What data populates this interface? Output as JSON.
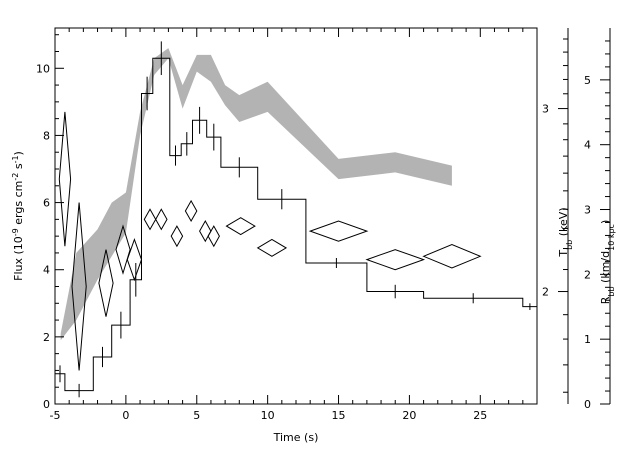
{
  "chart_data": {
    "type": "line",
    "xlabel": "Time (s)",
    "ylabel_left_parts": [
      "Flux (10",
      "-9",
      " ergs cm",
      "-2",
      " s",
      "-1",
      ")"
    ],
    "ylabel_right_T_parts": [
      "T",
      "bb",
      " (keV)"
    ],
    "ylabel_right_R_parts": [
      "R",
      "bb",
      " (km/d",
      "10 kpc",
      ")"
    ],
    "xlim": [
      -5,
      29
    ],
    "ylim_flux": [
      0,
      11.2
    ],
    "x_ticks": [
      "-5",
      "0",
      "5",
      "10",
      "15",
      "20",
      "25"
    ],
    "y_ticks_flux": [
      "0",
      "2",
      "4",
      "6",
      "8",
      "10"
    ],
    "y_ticks_T": [
      "2",
      "3"
    ],
    "y_ticks_R": [
      "0",
      "1",
      "2",
      "3",
      "4",
      "5"
    ],
    "axes": {
      "T_axis": {
        "tick_values": [
          2,
          3
        ],
        "flux_equivalent": [
          3.35,
          8.8
        ]
      },
      "R_axis": {
        "range": [
          0,
          5.8
        ]
      }
    },
    "series": [
      {
        "role": "flux_histogram",
        "bins": [
          {
            "x0": -5.0,
            "x1": -4.3,
            "y": 0.9,
            "err": 0.25
          },
          {
            "x0": -4.3,
            "x1": -2.3,
            "y": 0.4,
            "err": 0.2
          },
          {
            "x0": -2.3,
            "x1": -1.0,
            "y": 1.4,
            "err": 0.3
          },
          {
            "x0": -1.0,
            "x1": 0.3,
            "y": 2.35,
            "err": 0.4
          },
          {
            "x0": 0.3,
            "x1": 1.1,
            "y": 3.7,
            "err": 0.5
          },
          {
            "x0": 1.1,
            "x1": 1.9,
            "y": 9.25,
            "err": 0.5
          },
          {
            "x0": 1.9,
            "x1": 3.1,
            "y": 10.3,
            "err": 0.5
          },
          {
            "x0": 3.1,
            "x1": 3.9,
            "y": 7.4,
            "err": 0.3
          },
          {
            "x0": 3.9,
            "x1": 4.7,
            "y": 7.75,
            "err": 0.35
          },
          {
            "x0": 4.7,
            "x1": 5.7,
            "y": 8.45,
            "err": 0.4
          },
          {
            "x0": 5.7,
            "x1": 6.7,
            "y": 7.95,
            "err": 0.4
          },
          {
            "x0": 6.7,
            "x1": 9.3,
            "y": 7.05,
            "err": 0.3
          },
          {
            "x0": 9.3,
            "x1": 12.7,
            "y": 6.1,
            "err": 0.3
          },
          {
            "x0": 12.7,
            "x1": 17.0,
            "y": 4.2,
            "err": 0.15
          },
          {
            "x0": 17.0,
            "x1": 21.0,
            "y": 3.35,
            "err": 0.2
          },
          {
            "x0": 21.0,
            "x1": 28.0,
            "y": 3.15,
            "err": 0.15
          },
          {
            "x0": 28.0,
            "x1": 29.0,
            "y": 2.9,
            "err": 0.1
          }
        ]
      },
      {
        "role": "temperature_diamonds",
        "points": [
          {
            "x": -4.3,
            "y": 6.7,
            "xerr": 0.4,
            "yerr": 2.0
          },
          {
            "x": -3.3,
            "y": 3.5,
            "xerr": 0.5,
            "yerr": 2.5
          },
          {
            "x": -1.4,
            "y": 3.6,
            "xerr": 0.5,
            "yerr": 1.0
          },
          {
            "x": -0.2,
            "y": 4.6,
            "xerr": 0.5,
            "yerr": 0.7
          },
          {
            "x": 0.6,
            "y": 4.3,
            "xerr": 0.5,
            "yerr": 0.6
          },
          {
            "x": 1.7,
            "y": 5.5,
            "xerr": 0.4,
            "yerr": 0.3
          },
          {
            "x": 2.5,
            "y": 5.5,
            "xerr": 0.4,
            "yerr": 0.3
          },
          {
            "x": 3.6,
            "y": 5.0,
            "xerr": 0.4,
            "yerr": 0.3
          },
          {
            "x": 4.6,
            "y": 5.75,
            "xerr": 0.4,
            "yerr": 0.3
          },
          {
            "x": 5.6,
            "y": 5.15,
            "xerr": 0.4,
            "yerr": 0.3
          },
          {
            "x": 6.2,
            "y": 5.0,
            "xerr": 0.4,
            "yerr": 0.3
          },
          {
            "x": 8.1,
            "y": 5.3,
            "xerr": 1.0,
            "yerr": 0.25
          },
          {
            "x": 10.3,
            "y": 4.65,
            "xerr": 1.0,
            "yerr": 0.25
          },
          {
            "x": 15.0,
            "y": 5.15,
            "xerr": 2.0,
            "yerr": 0.3
          },
          {
            "x": 19.0,
            "y": 4.3,
            "xerr": 2.0,
            "yerr": 0.3
          },
          {
            "x": 23.0,
            "y": 4.4,
            "xerr": 2.0,
            "yerr": 0.35
          }
        ]
      },
      {
        "role": "radius_band",
        "x": [
          -4.6,
          -3.5,
          -2.0,
          -1.0,
          0.0,
          1.0,
          2.0,
          3.0,
          4.0,
          5.0,
          6.0,
          7.0,
          8.0,
          10.0,
          15.0,
          19.0,
          23.0
        ],
        "lower": [
          1.9,
          2.5,
          3.7,
          4.4,
          5.1,
          8.0,
          9.8,
          10.3,
          8.8,
          9.9,
          9.6,
          8.9,
          8.4,
          8.7,
          6.7,
          6.9,
          6.5
        ],
        "upper": [
          2.1,
          4.5,
          5.2,
          6.0,
          6.3,
          8.7,
          10.3,
          10.6,
          9.5,
          10.4,
          10.4,
          9.5,
          9.2,
          9.6,
          7.3,
          7.5,
          7.1
        ]
      }
    ]
  }
}
